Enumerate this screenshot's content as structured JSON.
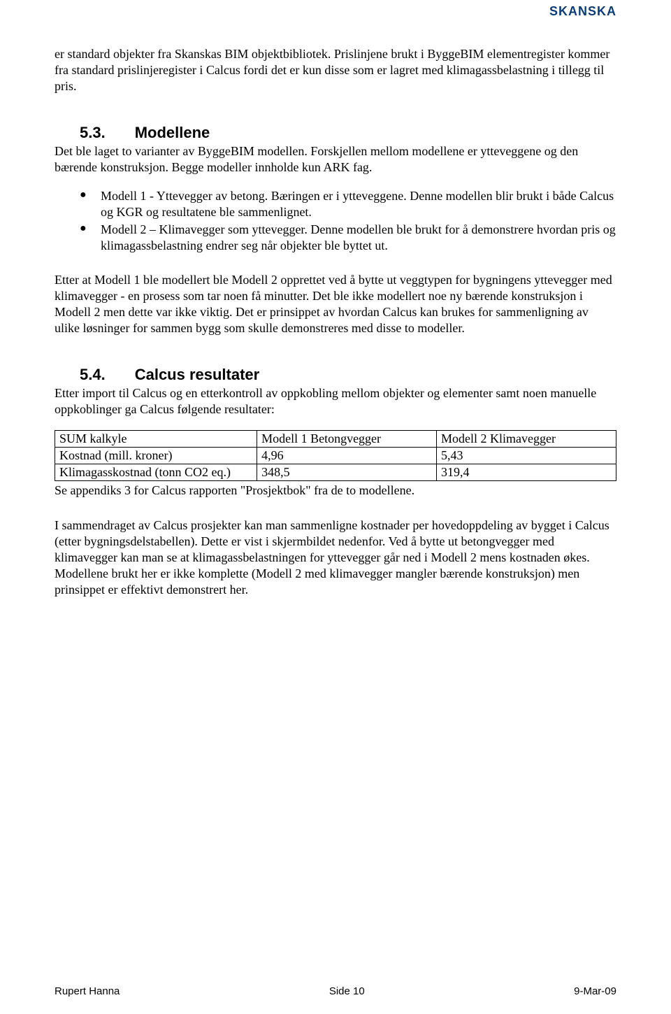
{
  "brand": {
    "name": "SKANSKA",
    "color": "#0b3c7a"
  },
  "intro_para": "er standard objekter fra Skanskas BIM objektbibliotek. Prislinjene brukt i ByggeBIM elementregister kommer fra standard prislinjeregister i Calcus fordi det er kun disse som er lagret med klimagassbelastning i tillegg til pris.",
  "section53": {
    "number": "5.3.",
    "title": "Modellene",
    "intro": "Det ble laget to varianter av ByggeBIM modellen. Forskjellen mellom modellene er ytteveggene og den bærende konstruksjon. Begge modeller innholde kun ARK fag.",
    "bullets": [
      "Modell 1 - Yttevegger av betong. Bæringen er i ytteveggene. Denne modellen blir brukt i både Calcus og KGR og resultatene ble sammenlignet.",
      "Modell 2 – Klimavegger som yttevegger. Denne modellen ble brukt for å demonstrere hvordan pris og klimagassbelastning endrer seg når objekter ble byttet ut."
    ],
    "after": "Etter at Modell 1 ble modellert ble Modell 2 opprettet ved å bytte ut veggtypen for bygningens yttevegger med klimavegger - en prosess som tar noen få minutter. Det ble ikke modellert noe ny bærende konstruksjon i Modell 2 men dette var ikke viktig. Det er prinsippet av hvordan Calcus kan brukes for sammenligning av ulike løsninger for sammen bygg som skulle demonstreres med disse to modeller."
  },
  "section54": {
    "number": "5.4.",
    "title": "Calcus resultater",
    "intro": "Etter import til Calcus og en etterkontroll av oppkobling mellom objekter og elementer samt noen manuelle oppkoblinger ga Calcus følgende resultater:",
    "table": {
      "type": "table",
      "columns": [
        "SUM kalkyle",
        "Modell 1 Betongvegger",
        "Modell 2 Klimavegger"
      ],
      "rows": [
        [
          "Kostnad (mill. kroner)",
          "4,96",
          "5,43"
        ],
        [
          "Klimagasskostnad (tonn CO2 eq.)",
          "348,5",
          "319,4"
        ]
      ],
      "border_color": "#000000",
      "background_color": "#ffffff",
      "font_size_pt": 13
    },
    "table_note": "Se appendiks 3 for Calcus rapporten \"Prosjektbok\" fra de to modellene.",
    "after": "I sammendraget av Calcus prosjekter kan man sammenligne kostnader per hovedoppdeling av bygget i Calcus (etter bygningsdelstabellen). Dette er vist i skjermbildet nedenfor. Ved å bytte ut betongvegger med klimavegger kan man se at klimagassbelastningen for yttevegger går ned i Modell 2 mens kostnaden økes. Modellene brukt her er ikke komplette (Modell 2 med klimavegger mangler bærende konstruksjon) men prinsippet er effektivt demonstrert her."
  },
  "footer": {
    "author": "Rupert Hanna",
    "page": "Side 10",
    "date": "9-Mar-09"
  }
}
